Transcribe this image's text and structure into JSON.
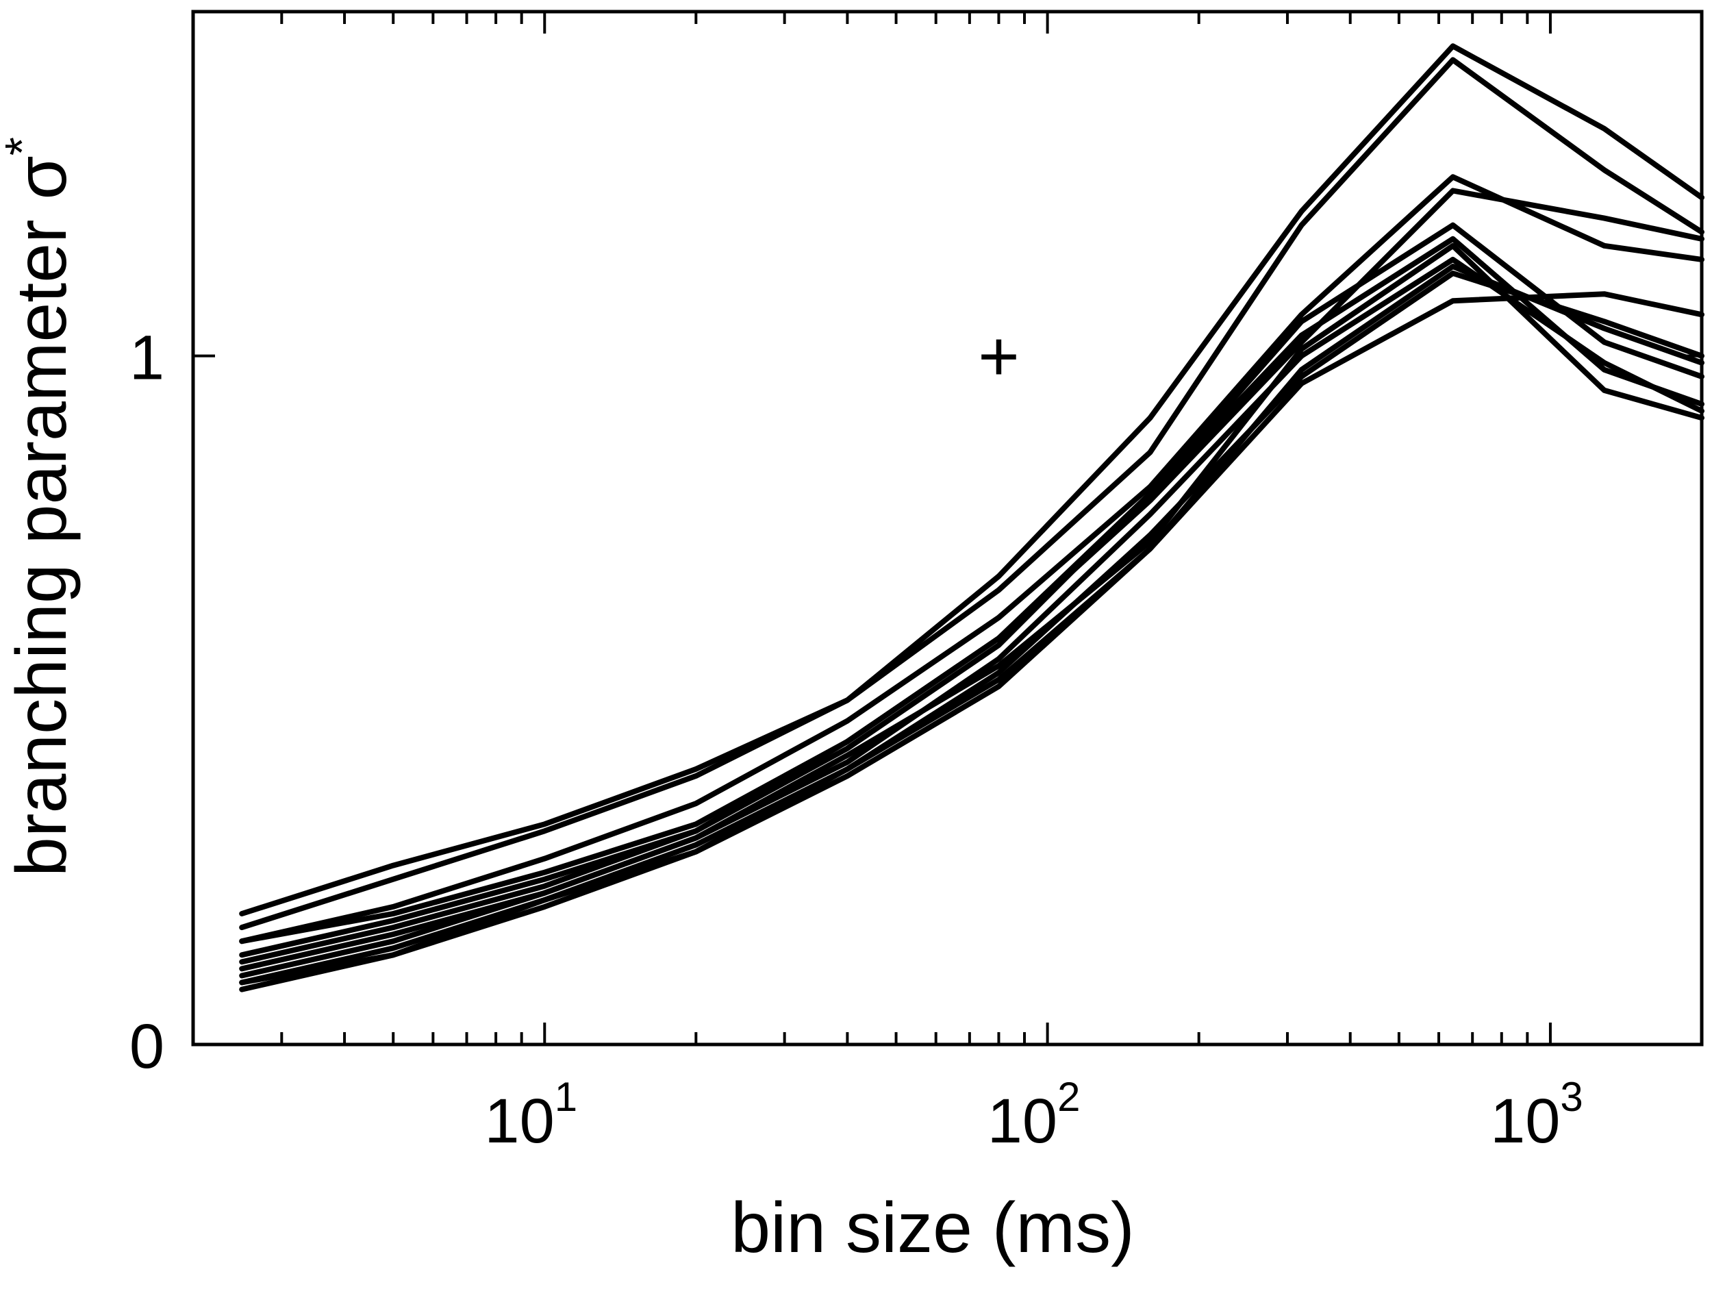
{
  "chart_data": {
    "type": "line",
    "xscale": "log",
    "xlim": [
      2,
      2000
    ],
    "ylim": [
      0,
      1.5
    ],
    "xlabel": "bin size (ms)",
    "ylabel": "branching parameter σ",
    "ylabel_sup": "*",
    "xticks": [
      {
        "value": 10,
        "base": "10",
        "exp": "1"
      },
      {
        "value": 100,
        "base": "10",
        "exp": "2"
      },
      {
        "value": 1000,
        "base": "10",
        "exp": "3"
      }
    ],
    "yticks": [
      {
        "value": 0,
        "label": "0"
      },
      {
        "value": 1,
        "label": "1"
      }
    ],
    "x": [
      2.5,
      5,
      10,
      20,
      40,
      80,
      160,
      320,
      640,
      1280,
      2000
    ],
    "series": [
      {
        "values": [
          0.19,
          0.26,
          0.32,
          0.4,
          0.5,
          0.68,
          0.91,
          1.21,
          1.45,
          1.33,
          1.23
        ]
      },
      {
        "values": [
          0.17,
          0.24,
          0.31,
          0.39,
          0.5,
          0.66,
          0.86,
          1.19,
          1.43,
          1.27,
          1.18
        ]
      },
      {
        "values": [
          0.15,
          0.2,
          0.27,
          0.35,
          0.47,
          0.62,
          0.81,
          1.06,
          1.26,
          1.16,
          1.14
        ]
      },
      {
        "values": [
          0.15,
          0.19,
          0.25,
          0.32,
          0.44,
          0.59,
          0.79,
          1.02,
          1.24,
          1.2,
          1.17
        ]
      },
      {
        "values": [
          0.13,
          0.18,
          0.24,
          0.31,
          0.44,
          0.59,
          0.8,
          1.05,
          1.19,
          1.02,
          0.97
        ]
      },
      {
        "values": [
          0.12,
          0.17,
          0.23,
          0.31,
          0.43,
          0.58,
          0.8,
          1.03,
          1.17,
          0.98,
          0.93
        ]
      },
      {
        "values": [
          0.11,
          0.16,
          0.22,
          0.3,
          0.42,
          0.55,
          0.73,
          1.01,
          1.16,
          0.95,
          0.91
        ]
      },
      {
        "values": [
          0.1,
          0.15,
          0.22,
          0.3,
          0.41,
          0.56,
          0.77,
          1.0,
          1.14,
          0.99,
          0.92
        ]
      },
      {
        "values": [
          0.09,
          0.14,
          0.21,
          0.28,
          0.4,
          0.54,
          0.74,
          0.97,
          1.12,
          1.05,
          1.0
        ]
      },
      {
        "values": [
          0.09,
          0.13,
          0.21,
          0.29,
          0.4,
          0.53,
          0.72,
          0.98,
          1.13,
          1.04,
          0.99
        ]
      },
      {
        "values": [
          0.08,
          0.13,
          0.2,
          0.28,
          0.39,
          0.52,
          0.72,
          0.96,
          1.08,
          1.09,
          1.06
        ]
      }
    ],
    "annotations": [
      {
        "text": "+",
        "x": 80,
        "y": 1.0
      }
    ]
  }
}
